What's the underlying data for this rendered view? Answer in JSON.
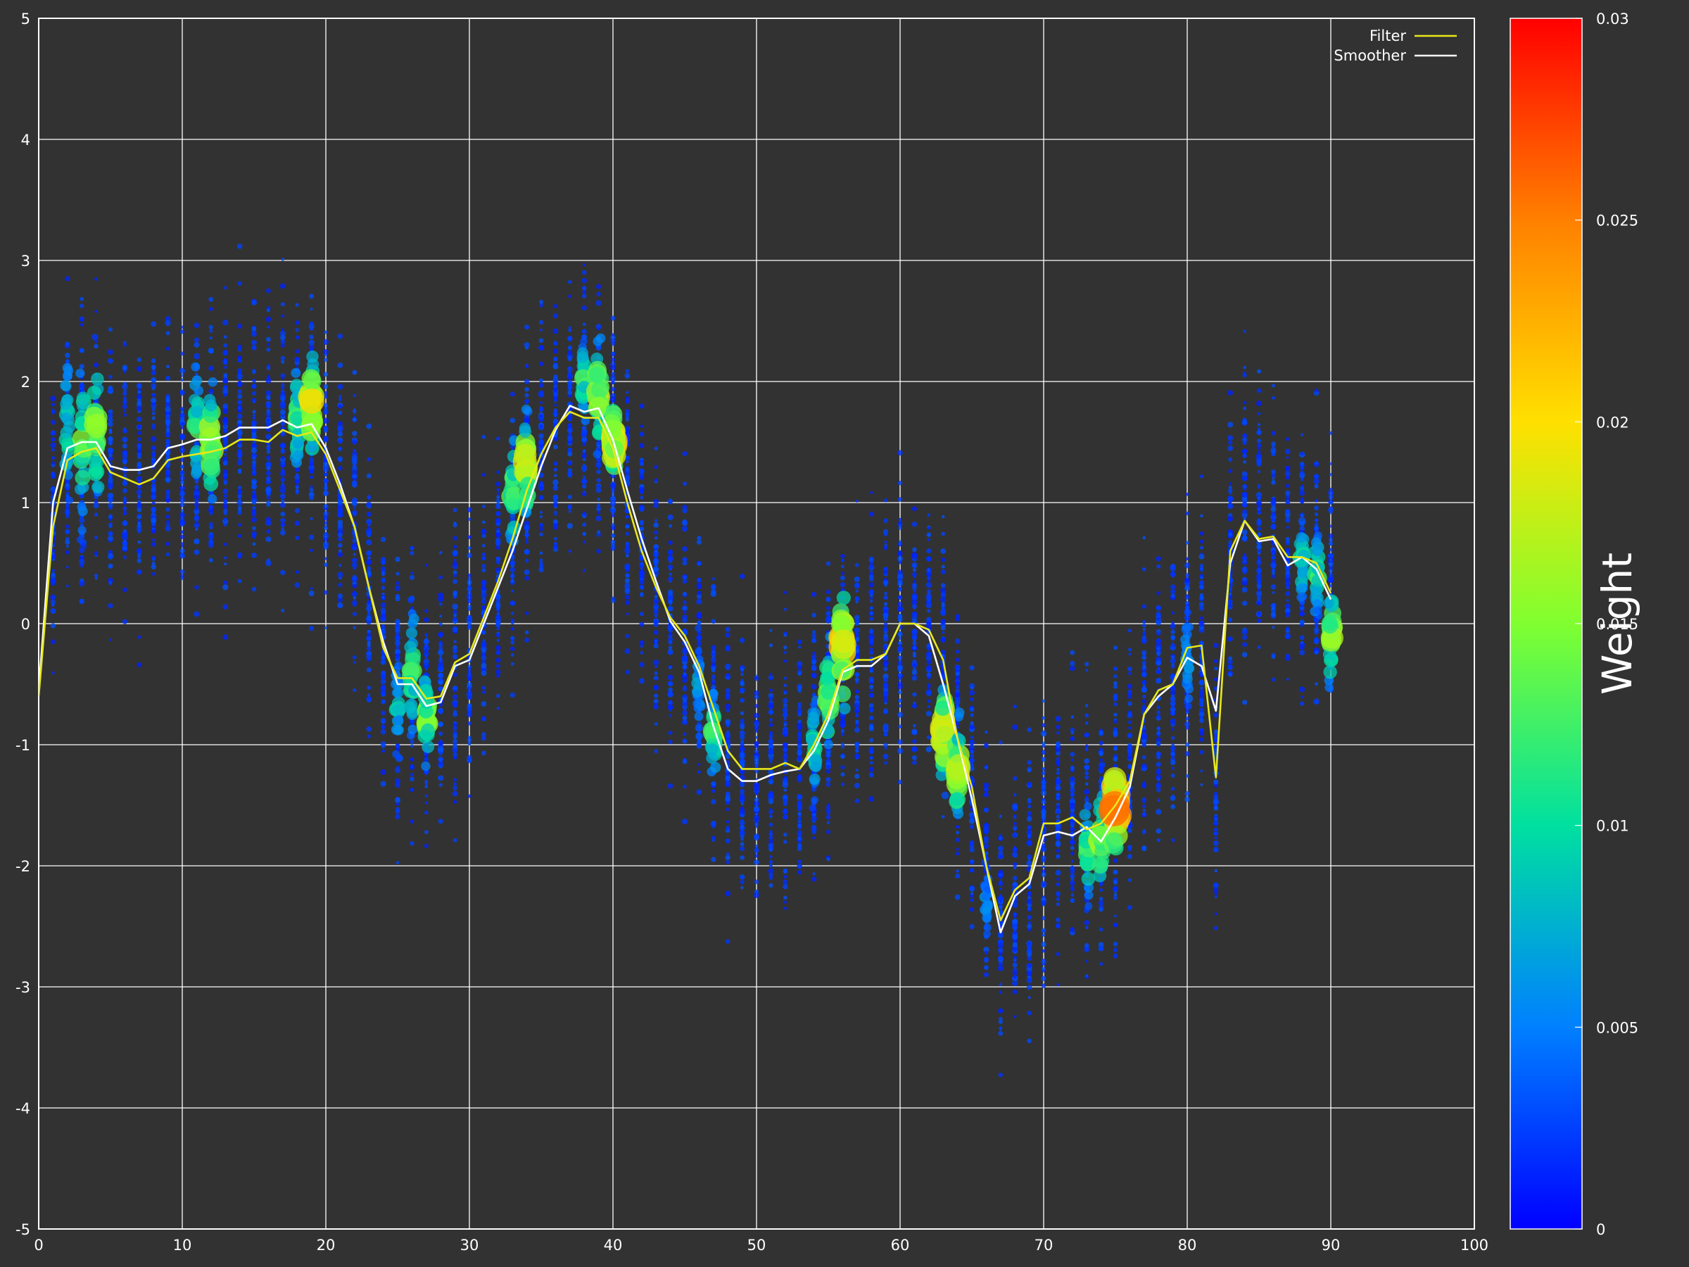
{
  "chart_data": {
    "type": "scatter",
    "background_color": "#323232",
    "grid": true,
    "grid_color": "#ffffff",
    "xlim": [
      0,
      100
    ],
    "ylim": [
      -5,
      5
    ],
    "x_ticks": [
      "0",
      "10",
      "20",
      "30",
      "40",
      "50",
      "60",
      "70",
      "80",
      "90",
      "100"
    ],
    "y_ticks": [
      "5",
      "4",
      "3",
      "2",
      "1",
      "0",
      "-1",
      "-2",
      "-3",
      "-4",
      "-5"
    ],
    "legend": {
      "placement": "top-right",
      "entries": [
        {
          "label": "Filter",
          "color": "#e8e81a"
        },
        {
          "label": "Smoother",
          "color": "#ffffff"
        }
      ]
    },
    "colorbar": {
      "title": "Weight",
      "range": [
        0,
        0.03
      ],
      "ticks": [
        "0.03",
        "0.025",
        "0.02",
        "0.015",
        "0.01",
        "0.005",
        "0"
      ],
      "colormap": [
        "#0000ff",
        "#0080ff",
        "#00e0a0",
        "#80ff30",
        "#ffe000",
        "#ff8000",
        "#ff0000"
      ]
    },
    "series": [
      {
        "name": "Filter",
        "color": "#e8e81a",
        "x": [
          0,
          1,
          2,
          3,
          4,
          5,
          6,
          7,
          8,
          9,
          10,
          11,
          12,
          13,
          14,
          15,
          16,
          17,
          18,
          19,
          20,
          21,
          22,
          23,
          24,
          25,
          26,
          27,
          28,
          29,
          30,
          31,
          32,
          33,
          34,
          35,
          36,
          37,
          38,
          39,
          40,
          41,
          42,
          43,
          44,
          45,
          46,
          47,
          48,
          49,
          50,
          51,
          52,
          53,
          54,
          55,
          56,
          57,
          58,
          59,
          60,
          61,
          62,
          63,
          64,
          65,
          66,
          67,
          68,
          69,
          70,
          71,
          72,
          73,
          74,
          75,
          76,
          77,
          78,
          79,
          80,
          81,
          82,
          83,
          84,
          85,
          86,
          87,
          88,
          89,
          90
        ],
        "y": [
          -0.6,
          0.8,
          1.35,
          1.42,
          1.45,
          1.25,
          1.2,
          1.15,
          1.2,
          1.35,
          1.38,
          1.4,
          1.42,
          1.45,
          1.52,
          1.52,
          1.5,
          1.6,
          1.55,
          1.58,
          1.4,
          1.1,
          0.8,
          0.3,
          -0.2,
          -0.45,
          -0.45,
          -0.62,
          -0.6,
          -0.32,
          -0.25,
          0.05,
          0.35,
          0.7,
          1.1,
          1.4,
          1.62,
          1.75,
          1.7,
          1.7,
          1.45,
          1.0,
          0.6,
          0.3,
          0.05,
          -0.1,
          -0.35,
          -0.7,
          -1.05,
          -1.2,
          -1.2,
          -1.2,
          -1.15,
          -1.2,
          -1.0,
          -0.75,
          -0.38,
          -0.3,
          -0.3,
          -0.25,
          0.0,
          0.0,
          -0.05,
          -0.3,
          -0.95,
          -1.35,
          -2.0,
          -2.45,
          -2.2,
          -2.1,
          -1.65,
          -1.65,
          -1.6,
          -1.7,
          -1.65,
          -1.5,
          -1.3,
          -0.75,
          -0.55,
          -0.5,
          -0.2,
          -0.18,
          -1.27,
          0.6,
          0.85,
          0.7,
          0.72,
          0.55,
          0.55,
          0.5,
          0.25
        ]
      },
      {
        "name": "Smoother",
        "color": "#ffffff",
        "x": [
          0,
          1,
          2,
          3,
          4,
          5,
          6,
          7,
          8,
          9,
          10,
          11,
          12,
          13,
          14,
          15,
          16,
          17,
          18,
          19,
          20,
          21,
          22,
          23,
          24,
          25,
          26,
          27,
          28,
          29,
          30,
          31,
          32,
          33,
          34,
          35,
          36,
          37,
          38,
          39,
          40,
          41,
          42,
          43,
          44,
          45,
          46,
          47,
          48,
          49,
          50,
          51,
          52,
          53,
          54,
          55,
          56,
          57,
          58,
          59,
          60,
          61,
          62,
          63,
          64,
          65,
          66,
          67,
          68,
          69,
          70,
          71,
          72,
          73,
          74,
          75,
          76,
          77,
          78,
          79,
          80,
          81,
          82,
          83,
          84,
          85,
          86,
          87,
          88,
          89,
          90
        ],
        "y": [
          -0.55,
          1.0,
          1.45,
          1.5,
          1.5,
          1.3,
          1.27,
          1.27,
          1.3,
          1.45,
          1.48,
          1.52,
          1.52,
          1.55,
          1.62,
          1.62,
          1.62,
          1.68,
          1.62,
          1.65,
          1.45,
          1.15,
          0.8,
          0.3,
          -0.15,
          -0.5,
          -0.5,
          -0.68,
          -0.65,
          -0.35,
          -0.3,
          0.0,
          0.3,
          0.6,
          0.95,
          1.3,
          1.6,
          1.8,
          1.75,
          1.78,
          1.52,
          1.1,
          0.7,
          0.35,
          0.02,
          -0.15,
          -0.4,
          -0.85,
          -1.2,
          -1.3,
          -1.3,
          -1.25,
          -1.22,
          -1.2,
          -1.05,
          -0.8,
          -0.4,
          -0.35,
          -0.35,
          -0.25,
          0.0,
          0.0,
          -0.1,
          -0.5,
          -0.95,
          -1.45,
          -2.0,
          -2.55,
          -2.25,
          -2.15,
          -1.75,
          -1.72,
          -1.75,
          -1.68,
          -1.8,
          -1.6,
          -1.35,
          -0.75,
          -0.6,
          -0.5,
          -0.28,
          -0.35,
          -0.72,
          0.5,
          0.85,
          0.68,
          0.7,
          0.48,
          0.55,
          0.45,
          0.2
        ]
      }
    ],
    "particle_clusters": [
      {
        "x": 2,
        "center": 1.6,
        "spread": 0.8,
        "peak_weight": 0.012
      },
      {
        "x": 3,
        "center": 1.5,
        "spread": 0.8,
        "peak_weight": 0.016
      },
      {
        "x": 4,
        "center": 1.6,
        "spread": 0.7,
        "peak_weight": 0.018
      },
      {
        "x": 11,
        "center": 1.6,
        "spread": 0.6,
        "peak_weight": 0.014
      },
      {
        "x": 12,
        "center": 1.5,
        "spread": 0.6,
        "peak_weight": 0.02
      },
      {
        "x": 18,
        "center": 1.7,
        "spread": 0.5,
        "peak_weight": 0.015
      },
      {
        "x": 19,
        "center": 1.8,
        "spread": 0.5,
        "peak_weight": 0.022
      },
      {
        "x": 25,
        "center": -0.7,
        "spread": 0.5,
        "peak_weight": 0.01
      },
      {
        "x": 26,
        "center": -0.4,
        "spread": 0.6,
        "peak_weight": 0.014
      },
      {
        "x": 27,
        "center": -0.8,
        "spread": 0.5,
        "peak_weight": 0.017
      },
      {
        "x": 33,
        "center": 1.1,
        "spread": 0.6,
        "peak_weight": 0.015
      },
      {
        "x": 34,
        "center": 1.3,
        "spread": 0.5,
        "peak_weight": 0.022
      },
      {
        "x": 38,
        "center": 2.0,
        "spread": 0.4,
        "peak_weight": 0.014
      },
      {
        "x": 39,
        "center": 1.9,
        "spread": 0.5,
        "peak_weight": 0.02
      },
      {
        "x": 40,
        "center": 1.5,
        "spread": 0.5,
        "peak_weight": 0.022
      },
      {
        "x": 46,
        "center": -0.5,
        "spread": 0.6,
        "peak_weight": 0.008
      },
      {
        "x": 47,
        "center": -0.9,
        "spread": 0.4,
        "peak_weight": 0.015
      },
      {
        "x": 54,
        "center": -1.0,
        "spread": 0.5,
        "peak_weight": 0.012
      },
      {
        "x": 55,
        "center": -0.6,
        "spread": 0.6,
        "peak_weight": 0.017
      },
      {
        "x": 56,
        "center": -0.2,
        "spread": 0.6,
        "peak_weight": 0.024
      },
      {
        "x": 63,
        "center": -0.9,
        "spread": 0.5,
        "peak_weight": 0.023
      },
      {
        "x": 64,
        "center": -1.2,
        "spread": 0.5,
        "peak_weight": 0.02
      },
      {
        "x": 66,
        "center": -2.3,
        "spread": 0.4,
        "peak_weight": 0.007
      },
      {
        "x": 73,
        "center": -1.9,
        "spread": 0.5,
        "peak_weight": 0.014
      },
      {
        "x": 74,
        "center": -1.8,
        "spread": 0.5,
        "peak_weight": 0.018
      },
      {
        "x": 75,
        "center": -1.5,
        "spread": 0.5,
        "peak_weight": 0.028
      },
      {
        "x": 80,
        "center": -0.3,
        "spread": 0.5,
        "peak_weight": 0.008
      },
      {
        "x": 88,
        "center": 0.5,
        "spread": 0.4,
        "peak_weight": 0.012
      },
      {
        "x": 89,
        "center": 0.4,
        "spread": 0.4,
        "peak_weight": 0.014
      },
      {
        "x": 90,
        "center": -0.1,
        "spread": 0.5,
        "peak_weight": 0.018
      }
    ]
  }
}
